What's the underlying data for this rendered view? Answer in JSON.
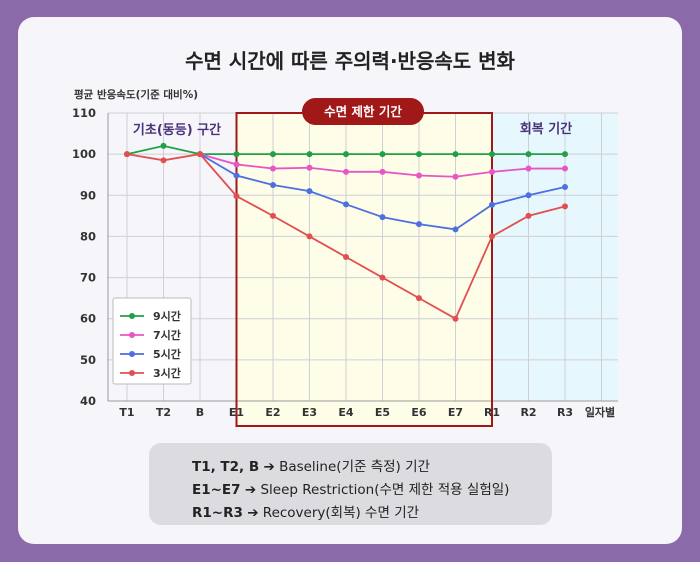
{
  "title": "수면 시간에 따른 주의력·반응속도 변화",
  "colors": {
    "background": "#8a6aa8",
    "card": "#f6f5fa",
    "restriction_fill": "#fdfde8",
    "restriction_border": "#a01818",
    "recovery_fill": "#e6f8fd",
    "badge": "#a01818",
    "phase_label": "#4a3278"
  },
  "chart_data": {
    "type": "line",
    "ylabel": "평균 반응속도(기준 대비%)",
    "xlabel": "일자별",
    "ylim": [
      40,
      110
    ],
    "yticks": [
      40,
      50,
      60,
      70,
      80,
      90,
      100,
      110
    ],
    "categories": [
      "T1",
      "T2",
      "B",
      "E1",
      "E2",
      "E3",
      "E4",
      "E5",
      "E6",
      "E7",
      "R1",
      "R2",
      "R3"
    ],
    "grid": true,
    "legend_position": "bottom-left",
    "series": [
      {
        "name": "9시간",
        "color": "#22a045",
        "values": [
          100,
          102,
          100,
          100,
          100,
          100,
          100,
          100,
          100,
          100,
          100,
          100,
          100
        ]
      },
      {
        "name": "7시간",
        "color": "#e855c4",
        "values": [
          null,
          null,
          100,
          97.5,
          96.5,
          96.7,
          95.7,
          95.7,
          94.8,
          94.5,
          95.7,
          96.5,
          96.5
        ]
      },
      {
        "name": "5시간",
        "color": "#4d6fe0",
        "values": [
          null,
          null,
          100,
          94.8,
          92.5,
          91,
          87.8,
          84.7,
          83,
          81.7,
          87.7,
          90,
          92
        ]
      },
      {
        "name": "3시간",
        "color": "#e05050",
        "values": [
          100,
          98.5,
          100,
          89.8,
          85,
          80,
          75,
          70,
          65,
          60,
          80,
          85,
          87.3
        ]
      }
    ],
    "phases": [
      {
        "label": "기초(동등) 구간"
      },
      {
        "label": "수면 제한 기간"
      },
      {
        "label": "회복 기간"
      }
    ]
  },
  "notes": [
    {
      "key": "T1, T2, B",
      "arrow": "➔",
      "text": "Baseline(기준 측정) 기간"
    },
    {
      "key": "E1~E7",
      "arrow": "➔",
      "text": "Sleep Restriction(수면 제한 적용 실험일)"
    },
    {
      "key": "R1~R3",
      "arrow": "➔",
      "text": "Recovery(회복) 수면 기간"
    }
  ]
}
